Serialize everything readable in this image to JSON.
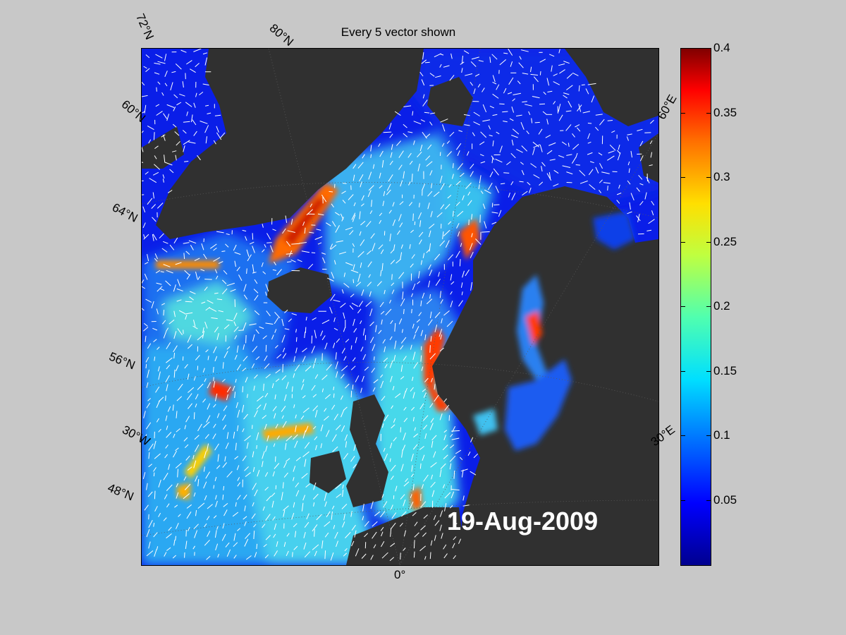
{
  "title": "Every 5 vector shown",
  "date": "19-Aug-2009",
  "grid_labels": {
    "lat_72": "72°N",
    "lat_80": "80°N",
    "lat_60_top": "60°N",
    "lat_64": "64°N",
    "lat_56": "56°N",
    "lon_30w": "30°W",
    "lat_48": "48°N",
    "lon_0": "0°",
    "lon_60e": "60°E",
    "lon_30e": "30°E"
  },
  "colorbar": {
    "min": 0,
    "max": 0.4,
    "ticks": [
      "0.05",
      "0.1",
      "0.15",
      "0.2",
      "0.25",
      "0.3",
      "0.35",
      "0.4"
    ],
    "tick_values": [
      0.05,
      0.1,
      0.15,
      0.2,
      0.25,
      0.3,
      0.35,
      0.4
    ],
    "colormap": "jet"
  },
  "colors": {
    "land": "#303030",
    "background": "#c8c8c8",
    "vectors": "#ffffff"
  }
}
